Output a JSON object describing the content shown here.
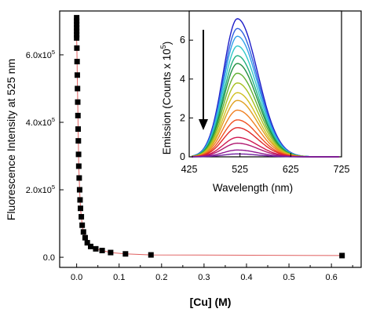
{
  "chart_data": [
    {
      "type": "scatter",
      "xlabel": "[Cu] (M)",
      "ylabel": "Fluorescence Intensity at 525 nm",
      "xlim": [
        -0.04,
        0.67
      ],
      "ylim": [
        -30000,
        730000
      ],
      "xticks": [
        0.0,
        0.1,
        0.2,
        0.3,
        0.4,
        0.5,
        0.6
      ],
      "xtick_labels": [
        "0.0",
        "0.1",
        "0.2",
        "0.3",
        "0.4",
        "0.5",
        "0.6"
      ],
      "yticks": [
        0,
        200000,
        400000,
        600000
      ],
      "ytick_labels": [
        "0.0",
        "2.0x10",
        "4.0x10",
        "6.0x10"
      ],
      "ytick_exponents": [
        "",
        "5",
        "5",
        "5"
      ],
      "marker_color": "#000000",
      "fit_line_color": "#e06060",
      "x": [
        0,
        0,
        0,
        0,
        0,
        0,
        0,
        0.0005,
        0.001,
        0.0015,
        0.002,
        0.0025,
        0.003,
        0.0035,
        0.004,
        0.0045,
        0.005,
        0.006,
        0.007,
        0.008,
        0.009,
        0.011,
        0.013,
        0.016,
        0.02,
        0.025,
        0.033,
        0.045,
        0.06,
        0.08,
        0.115,
        0.175,
        0.625
      ],
      "y": [
        710000,
        700000,
        690000,
        680000,
        670000,
        660000,
        650000,
        620000,
        580000,
        540000,
        500000,
        460000,
        420000,
        380000,
        345000,
        305000,
        270000,
        235000,
        200000,
        170000,
        145000,
        120000,
        95000,
        75000,
        58000,
        43000,
        32000,
        25000,
        20000,
        14000,
        10000,
        7000,
        5000
      ]
    },
    {
      "type": "line",
      "xlabel": "Wavelength (nm)",
      "ylabel": "Emission (Counts x 10",
      "ylabel_exponent": "5",
      "ylabel_close": ")",
      "xlim": [
        425,
        725
      ],
      "ylim": [
        0,
        7.5
      ],
      "xticks": [
        425,
        525,
        625,
        725
      ],
      "xtick_labels": [
        "425",
        "525",
        "625",
        "725"
      ],
      "yticks": [
        0,
        2,
        4,
        6
      ],
      "ytick_labels": [
        "0",
        "2",
        "4",
        "6"
      ],
      "peak_wavelength": 520,
      "arrow_direction": "down",
      "series": [
        {
          "peak": 7.1,
          "color": "#1c1cc8"
        },
        {
          "peak": 6.6,
          "color": "#3060e0"
        },
        {
          "peak": 6.2,
          "color": "#30a0e8"
        },
        {
          "peak": 5.7,
          "color": "#30c8c8"
        },
        {
          "peak": 5.2,
          "color": "#20b080"
        },
        {
          "peak": 4.8,
          "color": "#209040"
        },
        {
          "peak": 4.3,
          "color": "#60b030"
        },
        {
          "peak": 3.8,
          "color": "#a8c020"
        },
        {
          "peak": 3.3,
          "color": "#d0c020"
        },
        {
          "peak": 2.9,
          "color": "#e0a020"
        },
        {
          "peak": 2.4,
          "color": "#f08020"
        },
        {
          "peak": 1.9,
          "color": "#f05020"
        },
        {
          "peak": 1.5,
          "color": "#e02828"
        },
        {
          "peak": 1.0,
          "color": "#d01850"
        },
        {
          "peak": 0.7,
          "color": "#b01870"
        },
        {
          "peak": 0.35,
          "color": "#901890"
        },
        {
          "peak": 0.15,
          "color": "#7020a0"
        }
      ]
    }
  ]
}
